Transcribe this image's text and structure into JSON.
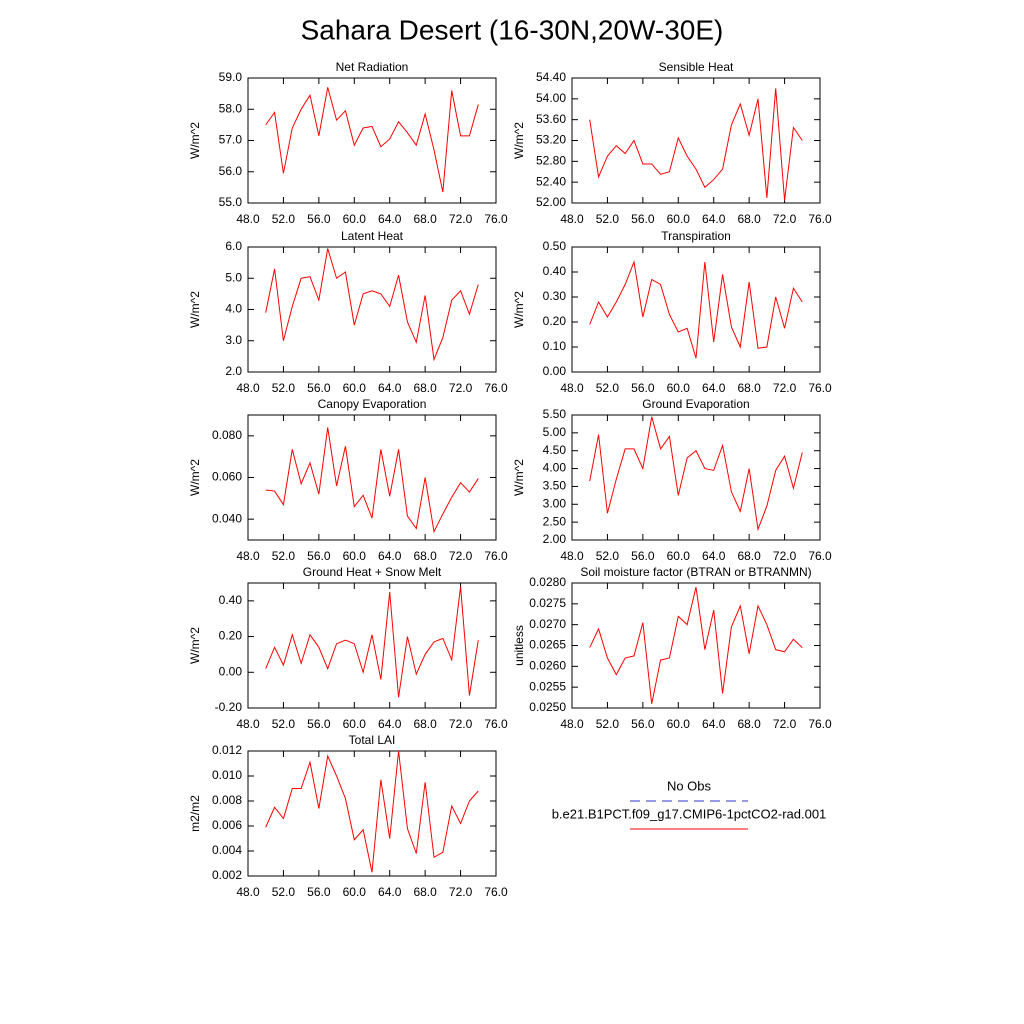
{
  "title": "Sahara Desert (16-30N,20W-30E)",
  "legend": [
    {
      "name": "No Obs",
      "color": "#3333cc",
      "dashed": true
    },
    {
      "name": "b.e21.B1PCT.f09_g17.CMIP6-1pctCO2-rad.001",
      "color": "#ff0000",
      "dashed": false
    }
  ],
  "chart_data": [
    {
      "type": "line",
      "title": "Net Radiation",
      "ylabel": "W/m^2",
      "color": "#ff0000",
      "x": [
        50,
        51,
        52,
        53,
        54,
        55,
        56,
        57,
        58,
        59,
        60,
        61,
        62,
        63,
        64,
        65,
        66,
        67,
        68,
        69,
        70,
        71,
        72,
        73,
        74
      ],
      "values": [
        57.5,
        57.9,
        55.95,
        57.4,
        58.0,
        58.45,
        57.15,
        58.7,
        57.65,
        57.95,
        56.85,
        57.4,
        57.45,
        56.8,
        57.05,
        57.6,
        57.25,
        56.85,
        57.85,
        56.7,
        55.35,
        58.6,
        57.15,
        57.15,
        58.15
      ],
      "xlim": [
        48,
        76
      ],
      "xticks": [
        {
          "value": 48,
          "label": "48.0"
        },
        {
          "value": 52,
          "label": "52.0"
        },
        {
          "value": 56,
          "label": "56.0"
        },
        {
          "value": 60,
          "label": "60.0"
        },
        {
          "value": 64,
          "label": "64.0"
        },
        {
          "value": 68,
          "label": "68.0"
        },
        {
          "value": 72,
          "label": "72.0"
        },
        {
          "value": 76,
          "label": "76.0"
        }
      ],
      "ylim": [
        55,
        59
      ],
      "yticks": [
        {
          "value": 55,
          "label": "55.0"
        },
        {
          "value": 56,
          "label": "56.0"
        },
        {
          "value": 57,
          "label": "57.0"
        },
        {
          "value": 58,
          "label": "58.0"
        },
        {
          "value": 59,
          "label": "59.0"
        }
      ]
    },
    {
      "type": "line",
      "title": "Sensible Heat",
      "ylabel": "W/m^2",
      "color": "#ff0000",
      "x": [
        50,
        51,
        52,
        53,
        54,
        55,
        56,
        57,
        58,
        59,
        60,
        61,
        62,
        63,
        64,
        65,
        66,
        67,
        68,
        69,
        70,
        71,
        72,
        73,
        74
      ],
      "values": [
        53.6,
        52.5,
        52.9,
        53.1,
        52.95,
        53.2,
        52.75,
        52.75,
        52.55,
        52.6,
        53.25,
        52.9,
        52.65,
        52.3,
        52.45,
        52.65,
        53.5,
        53.9,
        53.3,
        54.0,
        52.1,
        54.2,
        52.05,
        53.45,
        53.2
      ],
      "xlim": [
        48,
        76
      ],
      "xticks": [
        {
          "value": 48,
          "label": "48.0"
        },
        {
          "value": 52,
          "label": "52.0"
        },
        {
          "value": 56,
          "label": "56.0"
        },
        {
          "value": 60,
          "label": "60.0"
        },
        {
          "value": 64,
          "label": "64.0"
        },
        {
          "value": 68,
          "label": "68.0"
        },
        {
          "value": 72,
          "label": "72.0"
        },
        {
          "value": 76,
          "label": "76.0"
        }
      ],
      "ylim": [
        52,
        54.4
      ],
      "yticks": [
        {
          "value": 52,
          "label": "52.00"
        },
        {
          "value": 52.4,
          "label": "52.40"
        },
        {
          "value": 52.8,
          "label": "52.80"
        },
        {
          "value": 53.2,
          "label": "53.20"
        },
        {
          "value": 53.6,
          "label": "53.60"
        },
        {
          "value": 54,
          "label": "54.00"
        },
        {
          "value": 54.4,
          "label": "54.40"
        }
      ]
    },
    {
      "type": "line",
      "title": "Latent Heat",
      "ylabel": "W/m^2",
      "color": "#ff0000",
      "x": [
        50,
        51,
        52,
        53,
        54,
        55,
        56,
        57,
        58,
        59,
        60,
        61,
        62,
        63,
        64,
        65,
        66,
        67,
        68,
        69,
        70,
        71,
        72,
        73,
        74
      ],
      "values": [
        3.9,
        5.3,
        3.0,
        4.1,
        5.0,
        5.05,
        4.3,
        5.95,
        5.0,
        5.2,
        3.5,
        4.5,
        4.6,
        4.5,
        4.1,
        5.1,
        3.6,
        2.95,
        4.45,
        2.4,
        3.1,
        4.3,
        4.6,
        3.85,
        4.8
      ],
      "xlim": [
        48,
        76
      ],
      "xticks": [
        {
          "value": 48,
          "label": "48.0"
        },
        {
          "value": 52,
          "label": "52.0"
        },
        {
          "value": 56,
          "label": "56.0"
        },
        {
          "value": 60,
          "label": "60.0"
        },
        {
          "value": 64,
          "label": "64.0"
        },
        {
          "value": 68,
          "label": "68.0"
        },
        {
          "value": 72,
          "label": "72.0"
        },
        {
          "value": 76,
          "label": "76.0"
        }
      ],
      "ylim": [
        2,
        6
      ],
      "yticks": [
        {
          "value": 2,
          "label": "2.0"
        },
        {
          "value": 3,
          "label": "3.0"
        },
        {
          "value": 4,
          "label": "4.0"
        },
        {
          "value": 5,
          "label": "5.0"
        },
        {
          "value": 6,
          "label": "6.0"
        }
      ]
    },
    {
      "type": "line",
      "title": "Transpiration",
      "ylabel": "W/m^2",
      "color": "#ff0000",
      "x": [
        50,
        51,
        52,
        53,
        54,
        55,
        56,
        57,
        58,
        59,
        60,
        61,
        62,
        63,
        64,
        65,
        66,
        67,
        68,
        69,
        70,
        71,
        72,
        73,
        74
      ],
      "values": [
        0.19,
        0.28,
        0.22,
        0.28,
        0.35,
        0.44,
        0.22,
        0.37,
        0.35,
        0.23,
        0.16,
        0.175,
        0.055,
        0.44,
        0.12,
        0.39,
        0.18,
        0.1,
        0.36,
        0.095,
        0.1,
        0.3,
        0.175,
        0.335,
        0.28
      ],
      "xlim": [
        48,
        76
      ],
      "xticks": [
        {
          "value": 48,
          "label": "48.0"
        },
        {
          "value": 52,
          "label": "52.0"
        },
        {
          "value": 56,
          "label": "56.0"
        },
        {
          "value": 60,
          "label": "60.0"
        },
        {
          "value": 64,
          "label": "64.0"
        },
        {
          "value": 68,
          "label": "68.0"
        },
        {
          "value": 72,
          "label": "72.0"
        },
        {
          "value": 76,
          "label": "76.0"
        }
      ],
      "ylim": [
        0,
        0.5
      ],
      "yticks": [
        {
          "value": 0,
          "label": "0.00"
        },
        {
          "value": 0.1,
          "label": "0.10"
        },
        {
          "value": 0.2,
          "label": "0.20"
        },
        {
          "value": 0.3,
          "label": "0.30"
        },
        {
          "value": 0.4,
          "label": "0.40"
        },
        {
          "value": 0.5,
          "label": "0.50"
        }
      ]
    },
    {
      "type": "line",
      "title": "Canopy Evaporation",
      "ylabel": "W/m^2",
      "color": "#ff0000",
      "x": [
        50,
        51,
        52,
        53,
        54,
        55,
        56,
        57,
        58,
        59,
        60,
        61,
        62,
        63,
        64,
        65,
        66,
        67,
        68,
        69,
        70,
        71,
        72,
        73,
        74
      ],
      "values": [
        0.054,
        0.0535,
        0.047,
        0.0735,
        0.057,
        0.067,
        0.052,
        0.084,
        0.056,
        0.075,
        0.046,
        0.0515,
        0.0405,
        0.0735,
        0.051,
        0.0735,
        0.0415,
        0.0355,
        0.06,
        0.034,
        0.0425,
        0.0505,
        0.0575,
        0.053,
        0.0595
      ],
      "xlim": [
        48,
        76
      ],
      "xticks": [
        {
          "value": 48,
          "label": "48.0"
        },
        {
          "value": 52,
          "label": "52.0"
        },
        {
          "value": 56,
          "label": "56.0"
        },
        {
          "value": 60,
          "label": "60.0"
        },
        {
          "value": 64,
          "label": "64.0"
        },
        {
          "value": 68,
          "label": "68.0"
        },
        {
          "value": 72,
          "label": "72.0"
        },
        {
          "value": 76,
          "label": "76.0"
        }
      ],
      "ylim": [
        0.03,
        0.09
      ],
      "yticks": [
        {
          "value": 0.04,
          "label": "0.040"
        },
        {
          "value": 0.06,
          "label": "0.060"
        },
        {
          "value": 0.08,
          "label": "0.080"
        }
      ]
    },
    {
      "type": "line",
      "title": "Ground Evaporation",
      "ylabel": "W/m^2",
      "color": "#ff0000",
      "x": [
        50,
        51,
        52,
        53,
        54,
        55,
        56,
        57,
        58,
        59,
        60,
        61,
        62,
        63,
        64,
        65,
        66,
        67,
        68,
        69,
        70,
        71,
        72,
        73,
        74
      ],
      "values": [
        3.65,
        4.95,
        2.75,
        3.7,
        4.55,
        4.55,
        4.0,
        5.45,
        4.55,
        4.9,
        3.25,
        4.3,
        4.5,
        4.0,
        3.95,
        4.65,
        3.35,
        2.8,
        4.0,
        2.3,
        2.95,
        3.95,
        4.35,
        3.45,
        4.45
      ],
      "xlim": [
        48,
        76
      ],
      "xticks": [
        {
          "value": 48,
          "label": "48.0"
        },
        {
          "value": 52,
          "label": "52.0"
        },
        {
          "value": 56,
          "label": "56.0"
        },
        {
          "value": 60,
          "label": "60.0"
        },
        {
          "value": 64,
          "label": "64.0"
        },
        {
          "value": 68,
          "label": "68.0"
        },
        {
          "value": 72,
          "label": "72.0"
        },
        {
          "value": 76,
          "label": "76.0"
        }
      ],
      "ylim": [
        2,
        5.5
      ],
      "yticks": [
        {
          "value": 2,
          "label": "2.00"
        },
        {
          "value": 2.5,
          "label": "2.50"
        },
        {
          "value": 3,
          "label": "3.00"
        },
        {
          "value": 3.5,
          "label": "3.50"
        },
        {
          "value": 4,
          "label": "4.00"
        },
        {
          "value": 4.5,
          "label": "4.50"
        },
        {
          "value": 5,
          "label": "5.00"
        },
        {
          "value": 5.5,
          "label": "5.50"
        }
      ]
    },
    {
      "type": "line",
      "title": "Ground Heat + Snow Melt",
      "ylabel": "W/m^2",
      "color": "#ff0000",
      "x": [
        50,
        51,
        52,
        53,
        54,
        55,
        56,
        57,
        58,
        59,
        60,
        61,
        62,
        63,
        64,
        65,
        66,
        67,
        68,
        69,
        70,
        71,
        72,
        73,
        74
      ],
      "values": [
        0.02,
        0.14,
        0.04,
        0.21,
        0.05,
        0.21,
        0.14,
        0.02,
        0.16,
        0.18,
        0.16,
        0.0,
        0.21,
        -0.04,
        0.45,
        -0.14,
        0.2,
        -0.01,
        0.1,
        0.17,
        0.19,
        0.07,
        0.48,
        -0.13,
        0.18
      ],
      "xlim": [
        48,
        76
      ],
      "xticks": [
        {
          "value": 48,
          "label": "48.0"
        },
        {
          "value": 52,
          "label": "52.0"
        },
        {
          "value": 56,
          "label": "56.0"
        },
        {
          "value": 60,
          "label": "60.0"
        },
        {
          "value": 64,
          "label": "64.0"
        },
        {
          "value": 68,
          "label": "68.0"
        },
        {
          "value": 72,
          "label": "72.0"
        },
        {
          "value": 76,
          "label": "76.0"
        }
      ],
      "ylim": [
        -0.2,
        0.5
      ],
      "yticks": [
        {
          "value": -0.2,
          "label": "-0.20"
        },
        {
          "value": 0,
          "label": "0.00"
        },
        {
          "value": 0.2,
          "label": "0.20"
        },
        {
          "value": 0.4,
          "label": "0.40"
        }
      ]
    },
    {
      "type": "line",
      "title": "Soil moisture factor (BTRAN or BTRANMN)",
      "ylabel": "unitless",
      "color": "#ff0000",
      "x": [
        50,
        51,
        52,
        53,
        54,
        55,
        56,
        57,
        58,
        59,
        60,
        61,
        62,
        63,
        64,
        65,
        66,
        67,
        68,
        69,
        70,
        71,
        72,
        73,
        74
      ],
      "values": [
        0.02645,
        0.0269,
        0.0262,
        0.0258,
        0.0262,
        0.02625,
        0.02705,
        0.0251,
        0.02615,
        0.0262,
        0.0272,
        0.027,
        0.0279,
        0.0264,
        0.02735,
        0.02535,
        0.02695,
        0.02745,
        0.0263,
        0.02745,
        0.027,
        0.0264,
        0.02635,
        0.02665,
        0.02645
      ],
      "xlim": [
        48,
        76
      ],
      "xticks": [
        {
          "value": 48,
          "label": "48.0"
        },
        {
          "value": 52,
          "label": "52.0"
        },
        {
          "value": 56,
          "label": "56.0"
        },
        {
          "value": 60,
          "label": "60.0"
        },
        {
          "value": 64,
          "label": "64.0"
        },
        {
          "value": 68,
          "label": "68.0"
        },
        {
          "value": 72,
          "label": "72.0"
        },
        {
          "value": 76,
          "label": "76.0"
        }
      ],
      "ylim": [
        0.025,
        0.028
      ],
      "yticks": [
        {
          "value": 0.025,
          "label": "0.0250"
        },
        {
          "value": 0.0255,
          "label": "0.0255"
        },
        {
          "value": 0.026,
          "label": "0.0260"
        },
        {
          "value": 0.0265,
          "label": "0.0265"
        },
        {
          "value": 0.027,
          "label": "0.0270"
        },
        {
          "value": 0.0275,
          "label": "0.0275"
        },
        {
          "value": 0.028,
          "label": "0.0280"
        }
      ]
    },
    {
      "type": "line",
      "title": "Total LAI",
      "ylabel": "m2/m2",
      "color": "#ff0000",
      "x": [
        50,
        51,
        52,
        53,
        54,
        55,
        56,
        57,
        58,
        59,
        60,
        61,
        62,
        63,
        64,
        65,
        66,
        67,
        68,
        69,
        70,
        71,
        72,
        73,
        74
      ],
      "values": [
        0.0059,
        0.0075,
        0.0066,
        0.009,
        0.009,
        0.0111,
        0.0074,
        0.0116,
        0.01,
        0.0082,
        0.0049,
        0.0057,
        0.0023,
        0.0097,
        0.005,
        0.012,
        0.0058,
        0.0038,
        0.0095,
        0.0035,
        0.0039,
        0.0076,
        0.0062,
        0.008,
        0.0088
      ],
      "xlim": [
        48,
        76
      ],
      "xticks": [
        {
          "value": 48,
          "label": "48.0"
        },
        {
          "value": 52,
          "label": "52.0"
        },
        {
          "value": 56,
          "label": "56.0"
        },
        {
          "value": 60,
          "label": "60.0"
        },
        {
          "value": 64,
          "label": "64.0"
        },
        {
          "value": 68,
          "label": "68.0"
        },
        {
          "value": 72,
          "label": "72.0"
        },
        {
          "value": 76,
          "label": "76.0"
        }
      ],
      "ylim": [
        0.002,
        0.012
      ],
      "yticks": [
        {
          "value": 0.002,
          "label": "0.002"
        },
        {
          "value": 0.004,
          "label": "0.004"
        },
        {
          "value": 0.006,
          "label": "0.006"
        },
        {
          "value": 0.008,
          "label": "0.008"
        },
        {
          "value": 0.01,
          "label": "0.010"
        },
        {
          "value": 0.012,
          "label": "0.012"
        }
      ]
    }
  ]
}
